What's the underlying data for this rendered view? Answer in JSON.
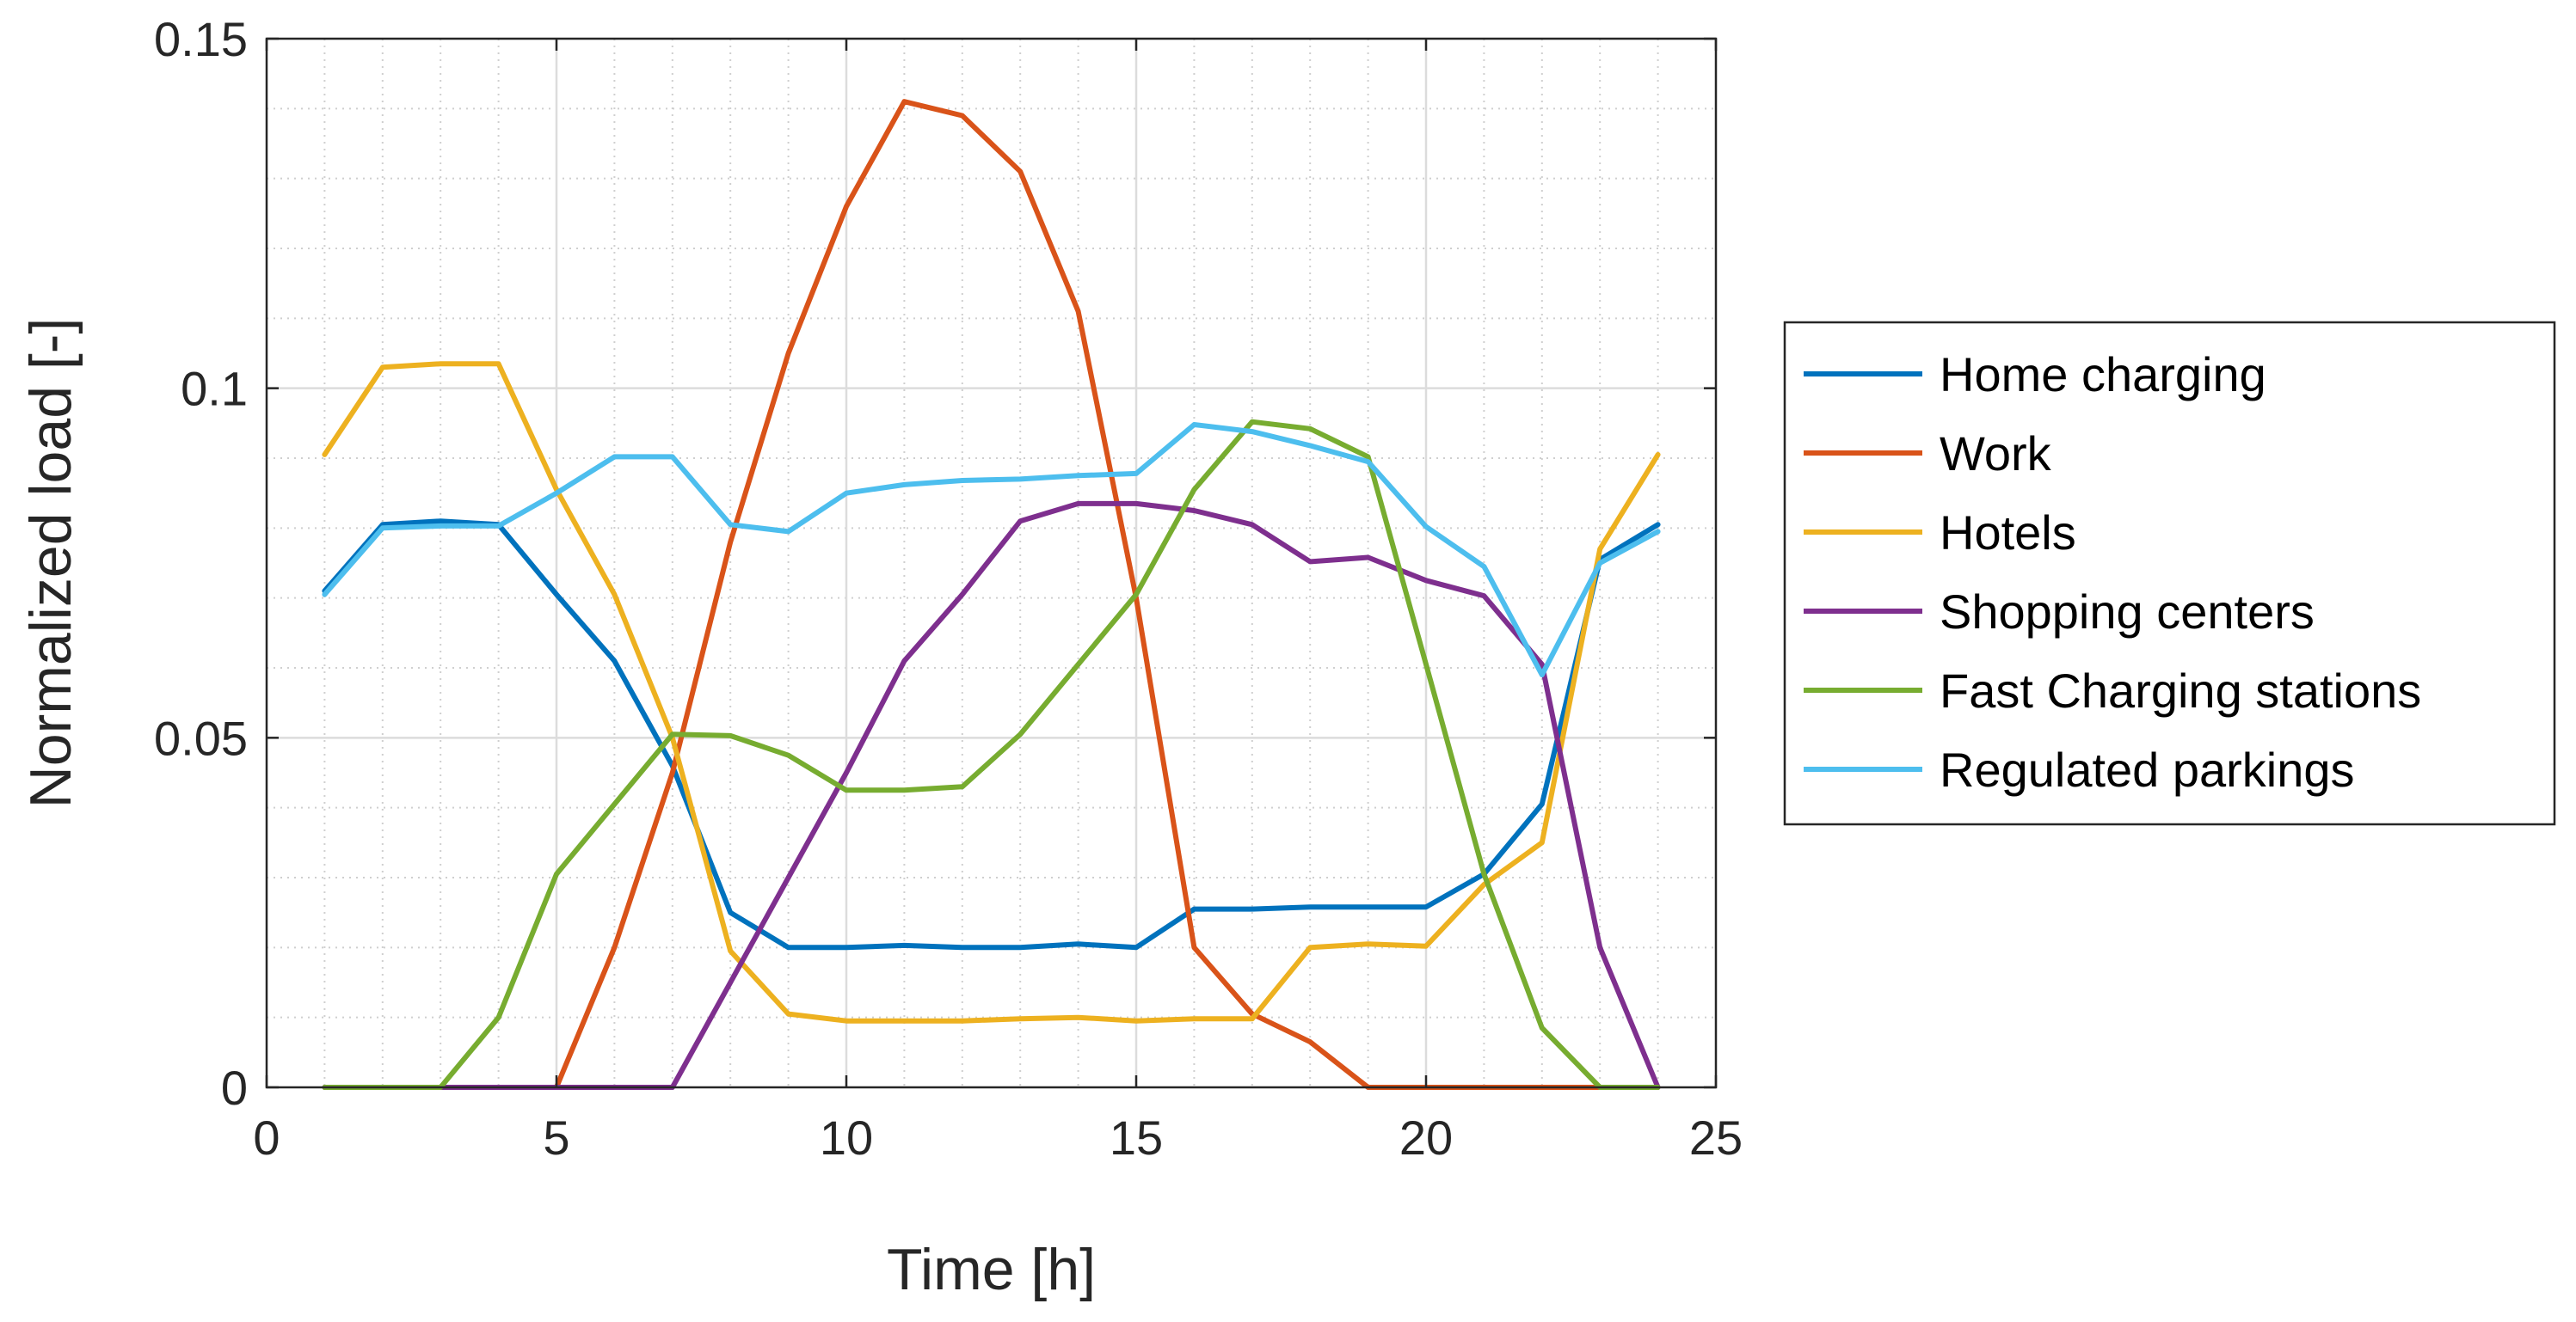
{
  "chart_data": {
    "type": "line",
    "title": "",
    "xlabel": "Time [h]",
    "ylabel": "Normalized load [-]",
    "xlim": [
      0,
      25
    ],
    "ylim": [
      0,
      0.15
    ],
    "xticks": [
      0,
      5,
      10,
      15,
      20,
      25
    ],
    "xtick_labels": [
      "0",
      "5",
      "10",
      "15",
      "20",
      "25"
    ],
    "yticks": [
      0,
      0.05,
      0.1,
      0.15
    ],
    "ytick_labels": [
      "0",
      "0.05",
      "0.1",
      "0.15"
    ],
    "grid": true,
    "minor_grid": true,
    "legend_position": "outside-right",
    "x": [
      1,
      2,
      3,
      4,
      5,
      6,
      7,
      8,
      9,
      10,
      11,
      12,
      13,
      14,
      15,
      16,
      17,
      18,
      19,
      20,
      21,
      22,
      23,
      24
    ],
    "series": [
      {
        "name": "Home charging",
        "color": "#0072BD",
        "values": [
          0.071,
          0.0805,
          0.081,
          0.0805,
          0.0705,
          0.061,
          0.046,
          0.025,
          0.02,
          0.02,
          0.0203,
          0.02,
          0.02,
          0.0205,
          0.02,
          0.0255,
          0.0255,
          0.0258,
          0.0258,
          0.0258,
          0.0305,
          0.0405,
          0.0755,
          0.0805
        ]
      },
      {
        "name": "Work",
        "color": "#D95319",
        "values": [
          0,
          0,
          0,
          0,
          0,
          0.02,
          0.045,
          0.078,
          0.105,
          0.126,
          0.141,
          0.139,
          0.131,
          0.111,
          0.07,
          0.02,
          0.0105,
          0.0065,
          0,
          0,
          0,
          0,
          0,
          0
        ]
      },
      {
        "name": "Hotels",
        "color": "#EDB120",
        "values": [
          0.0905,
          0.103,
          0.1035,
          0.1035,
          0.0855,
          0.0705,
          0.05,
          0.0195,
          0.0105,
          0.0095,
          0.0095,
          0.0095,
          0.0098,
          0.01,
          0.0095,
          0.0098,
          0.0098,
          0.02,
          0.0205,
          0.0202,
          0.029,
          0.035,
          0.077,
          0.0905
        ]
      },
      {
        "name": "Shopping centers",
        "color": "#7E2F8E",
        "values": [
          0,
          0,
          0,
          0,
          0,
          0,
          0,
          0.015,
          0.03,
          0.045,
          0.061,
          0.0705,
          0.081,
          0.0835,
          0.0835,
          0.0825,
          0.0805,
          0.0752,
          0.0758,
          0.0725,
          0.0703,
          0.0605,
          0.02,
          0
        ]
      },
      {
        "name": "Fast Charging stations",
        "color": "#77AC30",
        "values": [
          0,
          0,
          0,
          0.01,
          0.0305,
          0.0405,
          0.0505,
          0.0503,
          0.0475,
          0.0425,
          0.0425,
          0.043,
          0.0505,
          0.0605,
          0.0705,
          0.0855,
          0.0952,
          0.0942,
          0.0902,
          0.0605,
          0.0305,
          0.0085,
          0,
          0
        ]
      },
      {
        "name": "Regulated parkings",
        "color": "#4DBEEE",
        "values": [
          0.0705,
          0.08,
          0.0803,
          0.0803,
          0.085,
          0.0902,
          0.0902,
          0.0805,
          0.0795,
          0.085,
          0.0862,
          0.0868,
          0.087,
          0.0875,
          0.0878,
          0.0948,
          0.0938,
          0.0918,
          0.0895,
          0.0802,
          0.0745,
          0.059,
          0.075,
          0.0795
        ]
      }
    ]
  }
}
